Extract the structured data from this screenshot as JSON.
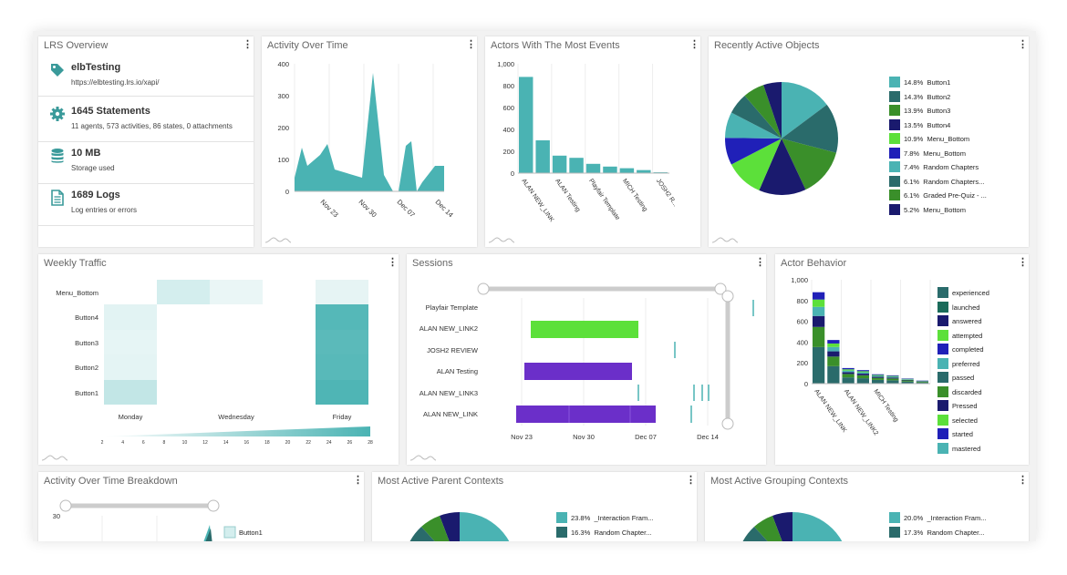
{
  "overview": {
    "title": "LRS Overview",
    "rows": [
      {
        "icon": "tag-icon",
        "title": "elbTesting",
        "sub": "https://elbtesting.lrs.io/xapi/"
      },
      {
        "icon": "gear-icon",
        "title": "1645 Statements",
        "sub": "11 agents, 573 activities, 86 states, 0 attachments"
      },
      {
        "icon": "database-icon",
        "title": "10 MB",
        "sub": "Storage used"
      },
      {
        "icon": "document-icon",
        "title": "1689 Logs",
        "sub": "Log entries or errors"
      }
    ]
  },
  "activity": {
    "title": "Activity Over Time",
    "chart_data": {
      "type": "area",
      "x_ticks": [
        "Nov 23",
        "Nov 30",
        "Dec 07",
        "Dec 14"
      ],
      "y_ticks": [
        "0",
        "100",
        "200",
        "300",
        "400"
      ],
      "ylim": [
        0,
        400
      ],
      "color": "#4ab3b3"
    }
  },
  "actors": {
    "title": "Actors With The Most Events",
    "chart_data": {
      "type": "bar",
      "categories": [
        "ALAN NEW_LINK",
        "",
        "ALAN Testing",
        "",
        "Playfair Template",
        "",
        "MICH Testing",
        "",
        "JOSH2 R..."
      ],
      "values": [
        880,
        300,
        160,
        140,
        85,
        60,
        45,
        28,
        8
      ],
      "y_ticks": [
        "0",
        "200",
        "400",
        "600",
        "800",
        "1,000"
      ],
      "ylim": [
        0,
        1000
      ],
      "color": "#4ab3b3"
    }
  },
  "recent": {
    "title": "Recently Active Objects",
    "chart_data": {
      "type": "pie",
      "slices": [
        {
          "pct": "14.8%",
          "label": "Button1",
          "value": 14.8,
          "color": "#4ab3b3"
        },
        {
          "pct": "14.3%",
          "label": "Button2",
          "value": 14.3,
          "color": "#2a6b6b"
        },
        {
          "pct": "13.9%",
          "label": "Button3",
          "value": 13.9,
          "color": "#3a8f2a"
        },
        {
          "pct": "13.5%",
          "label": "Button4",
          "value": 13.5,
          "color": "#1a1a6e"
        },
        {
          "pct": "10.9%",
          "label": "Menu_Bottom",
          "value": 10.9,
          "color": "#5ce03a"
        },
        {
          "pct": "7.8%",
          "label": "Menu_Bottom",
          "value": 7.8,
          "color": "#2020b8"
        },
        {
          "pct": "7.4%",
          "label": "Random Chapters",
          "value": 7.4,
          "color": "#4ab3b3"
        },
        {
          "pct": "6.1%",
          "label": "Random Chapters...",
          "value": 6.1,
          "color": "#2a6b6b"
        },
        {
          "pct": "6.1%",
          "label": "Graded Pre-Quiz - ...",
          "value": 6.1,
          "color": "#3a8f2a"
        },
        {
          "pct": "5.2%",
          "label": "Menu_Bottom",
          "value": 5.2,
          "color": "#1a1a6e"
        }
      ]
    }
  },
  "weekly": {
    "title": "Weekly Traffic",
    "chart_data": {
      "type": "heatmap",
      "rows": [
        "Menu_Bottom",
        "Button4",
        "Button3",
        "Button2",
        "Button1"
      ],
      "columns": [
        "Monday",
        "Wednesday",
        "Friday"
      ],
      "scale": [
        "2",
        "4",
        "6",
        "8",
        "10",
        "12",
        "14",
        "16",
        "18",
        "20",
        "22",
        "24",
        "26",
        "28"
      ],
      "colors": {
        "low": "#eaf6f6",
        "high": "#4ab3b3"
      }
    }
  },
  "sessions": {
    "title": "Sessions",
    "chart_data": {
      "type": "gantt",
      "rows": [
        "Playfair Template",
        "ALAN NEW_LINK2",
        "JOSH2 REVIEW",
        "ALAN Testing",
        "ALAN NEW_LINK3",
        "ALAN NEW_LINK"
      ],
      "x_ticks": [
        "Nov 23",
        "Nov 30",
        "Dec 07",
        "Dec 14"
      ],
      "colors": {
        "green": "#5ce03a",
        "purple": "#6b2fc9",
        "teal": "#4ab3b3"
      }
    }
  },
  "behavior": {
    "title": "Actor Behavior",
    "chart_data": {
      "type": "stacked-bar",
      "categories": [
        "ALAN NEW_LINK",
        "",
        "ALAN NEW_LINK2",
        "",
        "MICH Testing",
        "",
        "",
        ""
      ],
      "totals": [
        880,
        420,
        150,
        130,
        90,
        80,
        50,
        30
      ],
      "y_ticks": [
        "0",
        "200",
        "400",
        "600",
        "800",
        "1,000"
      ],
      "ylim": [
        0,
        1000
      ],
      "legend": [
        {
          "label": "experienced",
          "color": "#2a6b6b"
        },
        {
          "label": "launched",
          "color": "#1a6b5a"
        },
        {
          "label": "answered",
          "color": "#1a1a6e"
        },
        {
          "label": "attempted",
          "color": "#5ce03a"
        },
        {
          "label": "completed",
          "color": "#2020b8"
        },
        {
          "label": "preferred",
          "color": "#4ab3b3"
        },
        {
          "label": "passed",
          "color": "#2a6b6b"
        },
        {
          "label": "discarded",
          "color": "#3a8f2a"
        },
        {
          "label": "Pressed",
          "color": "#1a1a6e"
        },
        {
          "label": "selected",
          "color": "#5ce03a"
        },
        {
          "label": "started",
          "color": "#2020b8"
        },
        {
          "label": "mastered",
          "color": "#4ab3b3"
        }
      ]
    }
  },
  "breakdown": {
    "title": "Activity Over Time Breakdown",
    "y_top": "30",
    "legend_first": "Button1"
  },
  "parent": {
    "title": "Most Active Parent Contexts",
    "legend": [
      {
        "pct": "23.8%",
        "label": "_Interaction Fram...",
        "color": "#4ab3b3"
      },
      {
        "pct": "16.3%",
        "label": "Random Chapter...",
        "color": "#2a6b6b"
      }
    ]
  },
  "grouping": {
    "title": "Most Active Grouping Contexts",
    "legend": [
      {
        "pct": "20.0%",
        "label": "_Interaction Fram...",
        "color": "#4ab3b3"
      },
      {
        "pct": "17.3%",
        "label": "Random Chapter...",
        "color": "#2a6b6b"
      }
    ]
  }
}
